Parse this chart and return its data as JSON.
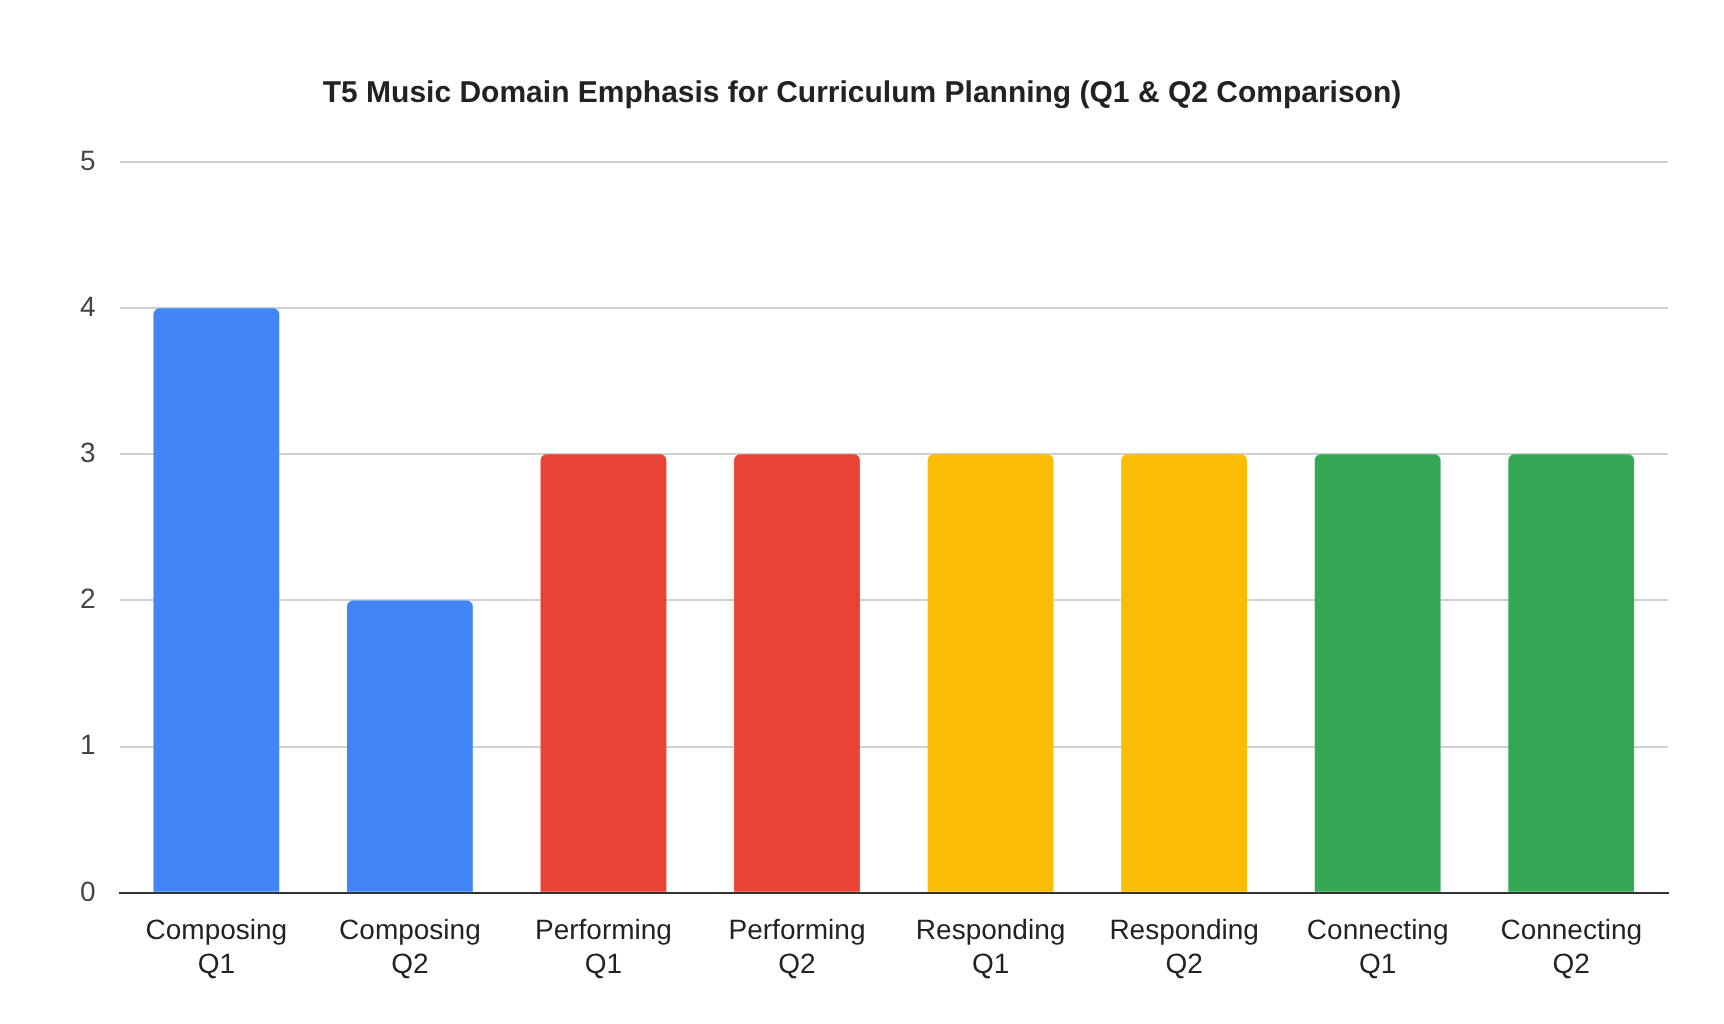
{
  "chart_data": {
    "type": "bar",
    "title": "T5 Music Domain Emphasis for Curriculum Planning (Q1 & Q2 Comparison)",
    "categories": [
      "Composing Q1",
      "Composing Q2",
      "Performing Q1",
      "Performing Q2",
      "Responding Q1",
      "Responding Q2",
      "Connecting Q1",
      "Connecting Q2"
    ],
    "values": [
      4,
      2,
      3,
      3,
      3,
      3,
      3,
      3
    ],
    "colors": [
      "#4285f4",
      "#4285f4",
      "#ea4335",
      "#ea4335",
      "#fbbc04",
      "#fbbc04",
      "#34a853",
      "#34a853"
    ],
    "ylim": [
      0,
      5
    ],
    "yticks": [
      0,
      1,
      2,
      3,
      4,
      5
    ],
    "grid": "y",
    "legend": false
  }
}
